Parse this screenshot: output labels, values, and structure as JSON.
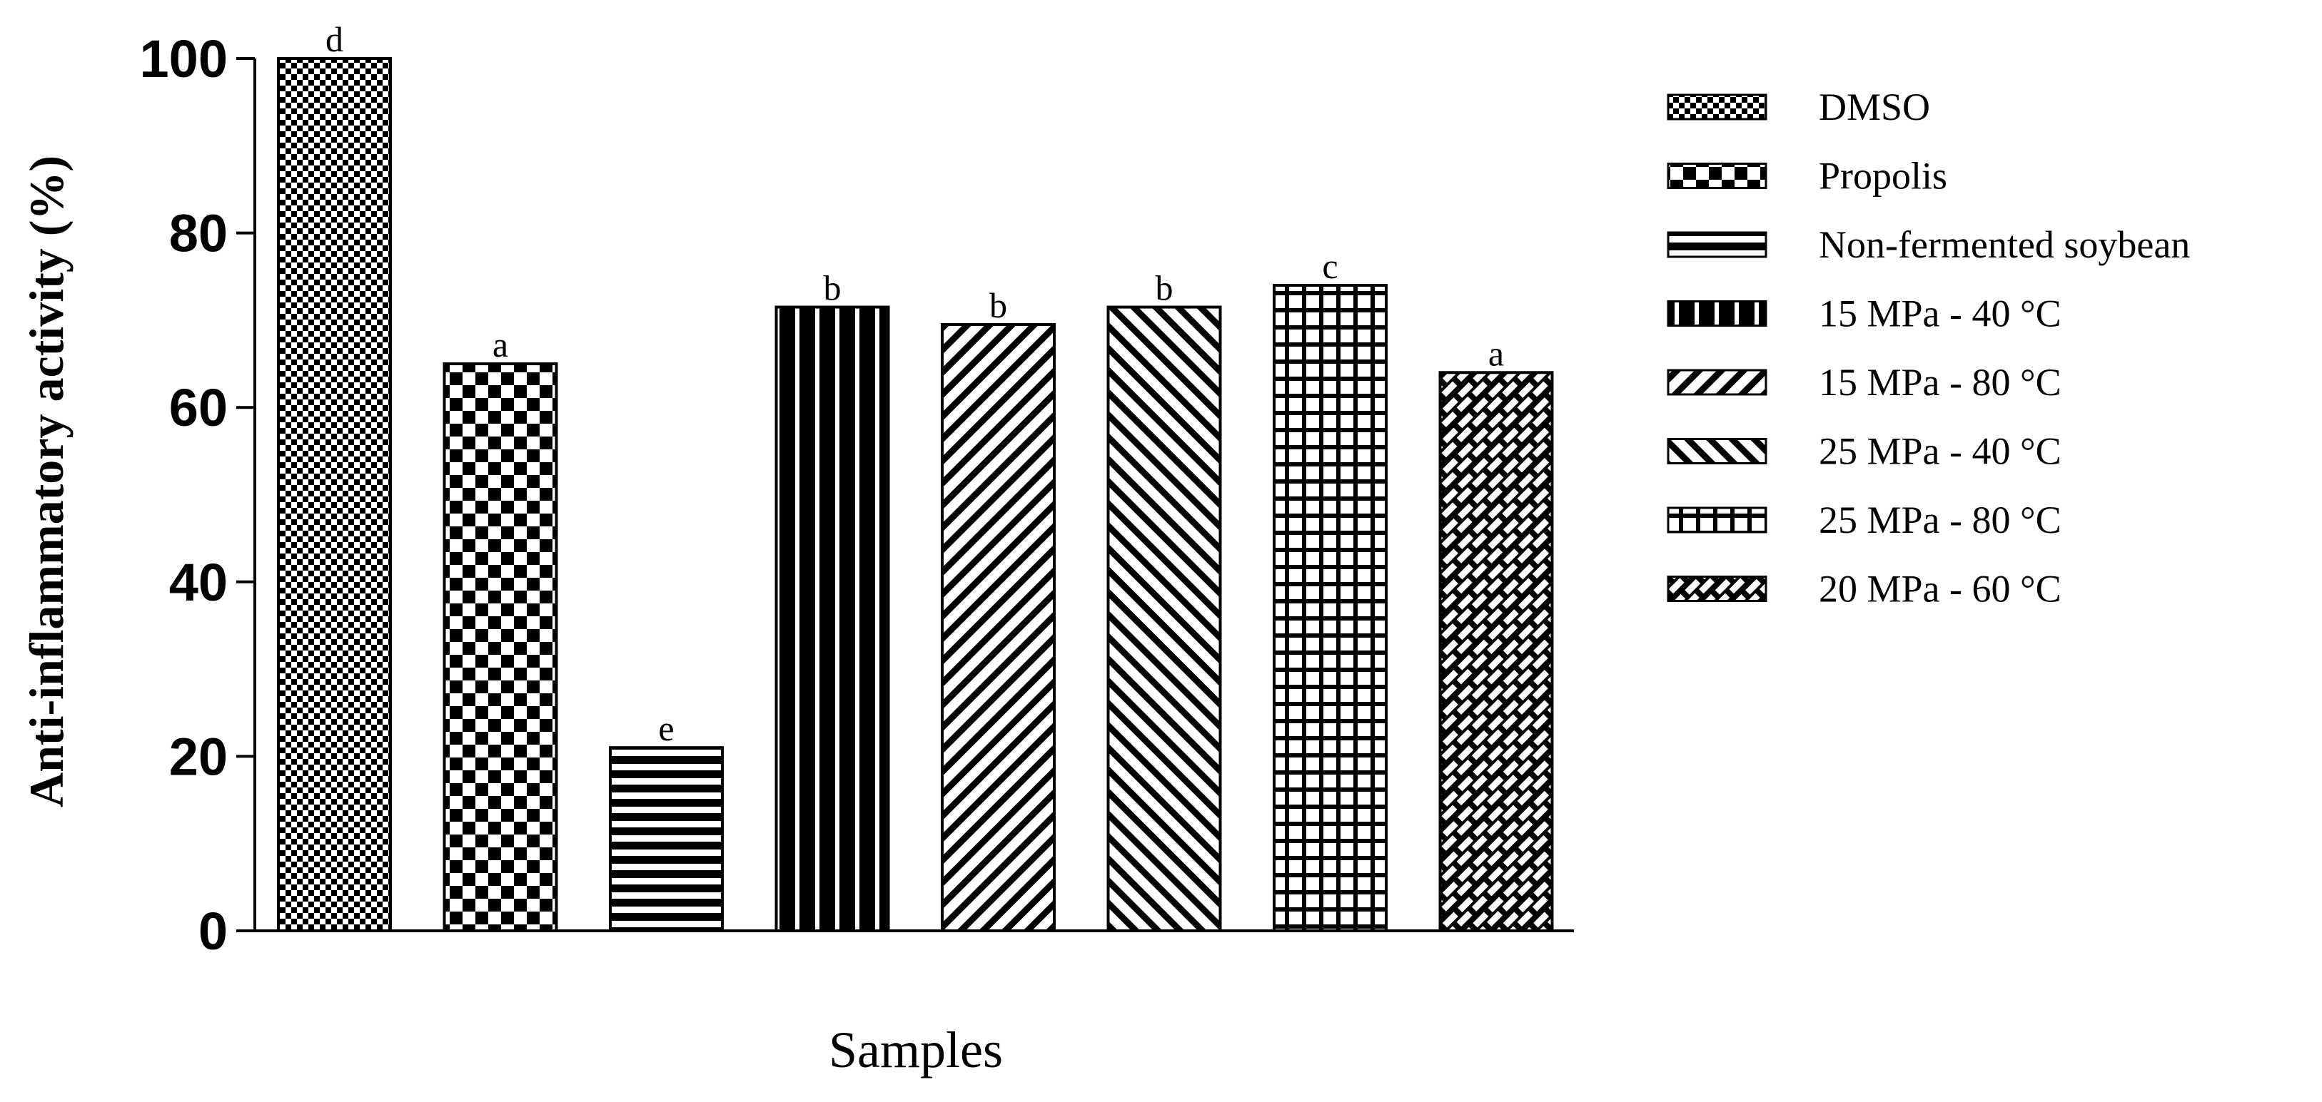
{
  "chart_data": {
    "type": "bar",
    "title": "",
    "xlabel": "Samples",
    "ylabel": "Anti-inflammatory activity (%)",
    "ylim": [
      0,
      100
    ],
    "yticks": [
      0,
      20,
      40,
      60,
      80,
      100
    ],
    "grid": false,
    "legend_position": "right",
    "categories": [
      "DMSO",
      "Propolis",
      "Non-fermented soybean",
      "15 MPa - 40 °C",
      "15 MPa - 80 °C",
      "25 MPa - 40 °C",
      "25 MPa - 80 °C",
      "20 MPa - 60 °C"
    ],
    "values": [
      100,
      65,
      21,
      71.5,
      69.5,
      71.5,
      74,
      64
    ],
    "significance_labels": [
      "d",
      "a",
      "e",
      "b",
      "b",
      "b",
      "c",
      "a"
    ],
    "patterns": [
      "checker-fine",
      "checker-coarse",
      "horizontal",
      "vertical-thick",
      "diag-right",
      "diag-left",
      "grid",
      "weave"
    ]
  }
}
